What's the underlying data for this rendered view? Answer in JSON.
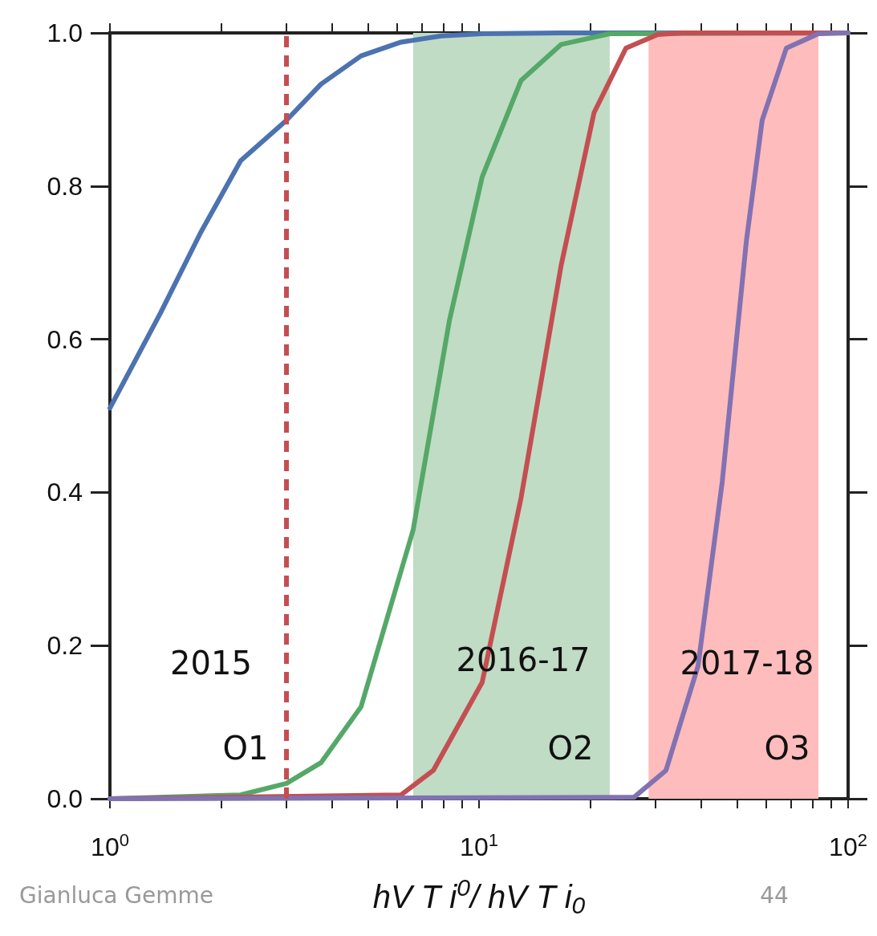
{
  "chart_data": {
    "type": "line",
    "xlabel": "hV T i$^{0}$/ hV T i$_{0}$",
    "log": "x",
    "grid": false,
    "marker": "none",
    "line_style": "solid",
    "xlim": [
      1,
      100
    ],
    "xticks": [
      {
        "value": 1,
        "label": "10$^{0}$"
      },
      {
        "value": 2,
        "label": null
      },
      {
        "value": 3,
        "label": null
      },
      {
        "value": 4,
        "label": null
      },
      {
        "value": 5,
        "label": null
      },
      {
        "value": 6,
        "label": null
      },
      {
        "value": 7,
        "label": null
      },
      {
        "value": 8,
        "label": null
      },
      {
        "value": 9,
        "label": null
      },
      {
        "value": 10,
        "label": "10$^{1}$"
      },
      {
        "value": 20,
        "label": null
      },
      {
        "value": 30,
        "label": null
      },
      {
        "value": 40,
        "label": null
      },
      {
        "value": 50,
        "label": null
      },
      {
        "value": 60,
        "label": null
      },
      {
        "value": 70,
        "label": null
      },
      {
        "value": 80,
        "label": null
      },
      {
        "value": 90,
        "label": null
      },
      {
        "value": 100,
        "label": "10$^{2}$"
      }
    ],
    "ylim": [
      0,
      1
    ],
    "yticks": [
      {
        "value": 0,
        "label": "0.0"
      },
      {
        "value": 0.2,
        "label": "0.2"
      },
      {
        "value": 0.4,
        "label": "0.4"
      },
      {
        "value": 0.6,
        "label": "0.6"
      },
      {
        "value": 0.8,
        "label": "0.8"
      },
      {
        "value": 1,
        "label": "1.0"
      }
    ],
    "series": [
      {
        "color": "#4c72b0",
        "x": [
          1,
          1.37,
          1.76,
          2.26,
          3.01,
          3.73,
          4.79,
          6.15,
          7.9,
          10.2,
          16.7,
          100
        ],
        "values": [
          0.51,
          0.634,
          0.739,
          0.833,
          0.886,
          0.933,
          0.97,
          0.988,
          0.996,
          0.999,
          1,
          1
        ]
      },
      {
        "color": "#55a868",
        "x": [
          1,
          2.26,
          3.01,
          3.73,
          4.79,
          6.63,
          8.31,
          10.2,
          13,
          16.7,
          22.6,
          100
        ],
        "values": [
          0,
          0.005,
          0.02,
          0.047,
          0.12,
          0.351,
          0.624,
          0.812,
          0.938,
          0.985,
          0.999,
          1
        ]
      },
      {
        "color": "#c44e52",
        "x": [
          1,
          6.15,
          7.52,
          10.2,
          13,
          16.7,
          20.5,
          25,
          30.5,
          35.5,
          100
        ],
        "values": [
          0,
          0.005,
          0.037,
          0.152,
          0.393,
          0.697,
          0.896,
          0.98,
          0.998,
          1,
          1
        ]
      },
      {
        "color": "#8172b2",
        "x": [
          1,
          26.3,
          32.1,
          39.2,
          45.6,
          53,
          58.5,
          68,
          83.1,
          100
        ],
        "values": [
          0,
          0.002,
          0.037,
          0.173,
          0.414,
          0.728,
          0.886,
          0.98,
          0.999,
          1
        ]
      }
    ],
    "ref_lines": [
      {
        "axis": "x",
        "value": 3,
        "color": "#c44e52",
        "line_style": "dashed"
      }
    ],
    "bands": [
      {
        "axis": "x",
        "from": 6.63,
        "to": 22.6,
        "color": "#c0dcc4"
      },
      {
        "axis": "x",
        "from": 28.8,
        "to": 83.1,
        "color": "#ffbcbc"
      }
    ],
    "annotations": [
      "2015",
      "O1",
      "2016-17",
      "O2",
      "2017-18",
      "O3",
      "Gianluca Gemme",
      "44"
    ]
  }
}
